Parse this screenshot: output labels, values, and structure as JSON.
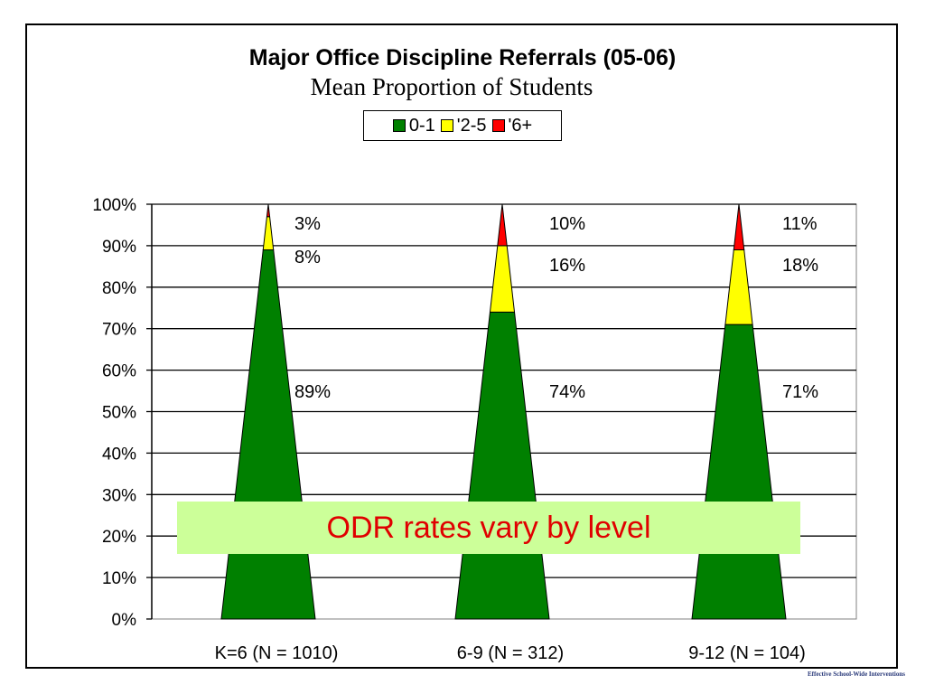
{
  "chart_data": {
    "type": "bar",
    "title": "Major Office Discipline Referrals (05-06)",
    "subtitle": "Mean Proportion of Students",
    "categories": [
      "K=6 (N = 1010)",
      "6-9 (N = 312)",
      "9-12 (N = 104)"
    ],
    "series": [
      {
        "name": "0-1",
        "values": [
          89,
          74,
          71
        ],
        "color": "#008000",
        "labels": [
          "89%",
          "74%",
          "71%"
        ]
      },
      {
        "name": "'2-5",
        "values": [
          8,
          16,
          18
        ],
        "color": "#ffff00",
        "labels": [
          "8%",
          "16%",
          "18%"
        ]
      },
      {
        "name": "'6+",
        "values": [
          3,
          10,
          11
        ],
        "color": "#ff0000",
        "labels": [
          "3%",
          "10%",
          "11%"
        ]
      }
    ],
    "stacked": true,
    "mark_shape": "cone",
    "ylim": [
      0,
      100
    ],
    "yticks": [
      "0%",
      "10%",
      "20%",
      "30%",
      "40%",
      "50%",
      "60%",
      "70%",
      "80%",
      "90%",
      "100%"
    ],
    "grid": true,
    "legend_position": "top"
  },
  "callout": {
    "text": "ODR rates vary by level",
    "background": "#ccff99",
    "color": "#e00000"
  },
  "footer": {
    "text": "Effective School-Wide Interventions"
  }
}
